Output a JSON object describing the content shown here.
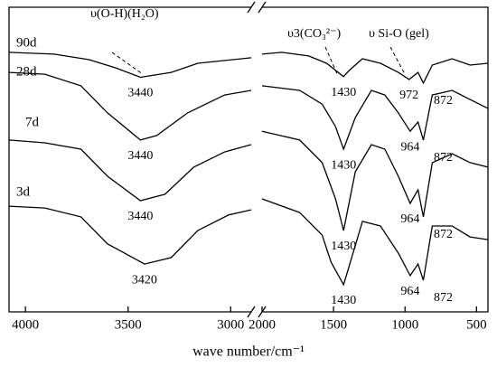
{
  "chart_data": {
    "type": "line",
    "x_label": "wave number/cm⁻¹",
    "xlim": [
      4080,
      2900
    ],
    "xticks": [
      4000,
      3500,
      3000
    ],
    "xlim2": [
      2000,
      420
    ],
    "x2ticks": [
      2000,
      1500,
      1000,
      500
    ],
    "ylim": [
      0,
      100
    ],
    "color": "#000000",
    "annotations": [
      "υ(O-H)(H₂O)",
      "υ3(CO₃²⁻)",
      "υ Si-O (gel)"
    ],
    "series": [
      {
        "name": "90d",
        "color": "#000000",
        "x": [
          4080,
          3860,
          3690,
          3560,
          3440,
          3290,
          3160,
          2900,
          2500,
          2000,
          1862,
          1674,
          1549,
          1430,
          1392,
          1298,
          1172,
          1047,
          972,
          909,
          872,
          809,
          671,
          545,
          420
        ],
        "values": [
          85.2,
          84.6,
          82.8,
          80.1,
          77.0,
          78.6,
          81.6,
          83.4,
          null,
          84.6,
          85.2,
          84.0,
          81.6,
          77.2,
          79.2,
          83.1,
          81.6,
          78.6,
          76.3,
          78.6,
          75.1,
          81.0,
          83.1,
          81.0,
          81.6
        ],
        "peak_labels": [
          3440,
          1430,
          972,
          872
        ]
      },
      {
        "name": "28d",
        "color": "#000000",
        "x": [
          4080,
          3905,
          3730,
          3600,
          3440,
          3360,
          3210,
          3030,
          2900,
          2500,
          2000,
          1737,
          1580,
          1486,
          1430,
          1348,
          1235,
          1141,
          1047,
          964,
          909,
          872,
          809,
          671,
          545,
          420
        ],
        "values": [
          78.6,
          78.0,
          74.2,
          65.3,
          56.4,
          57.9,
          65.3,
          71.2,
          72.7,
          null,
          74.2,
          72.7,
          68.2,
          60.8,
          53.4,
          63.8,
          72.7,
          71.2,
          65.3,
          59.3,
          62.3,
          56.4,
          71.2,
          72.7,
          69.7,
          66.8
        ],
        "peak_labels": [
          3440,
          1430,
          964,
          872
        ]
      },
      {
        "name": "7d",
        "color": "#000000",
        "x": [
          4080,
          3905,
          3730,
          3600,
          3440,
          3320,
          3180,
          3030,
          2900,
          2500,
          2000,
          1737,
          1580,
          1486,
          1430,
          1348,
          1235,
          1141,
          1047,
          964,
          909,
          872,
          809,
          671,
          545,
          420
        ],
        "values": [
          56.4,
          55.5,
          53.4,
          44.5,
          36.5,
          38.6,
          47.5,
          52.5,
          54.9,
          null,
          59.3,
          56.4,
          49.0,
          37.1,
          26.7,
          46.0,
          54.9,
          53.4,
          44.5,
          35.6,
          40.1,
          31.2,
          49.0,
          51.9,
          49.0,
          47.5
        ],
        "peak_labels": [
          3440,
          1430,
          964,
          872
        ]
      },
      {
        "name": "3d",
        "color": "#000000",
        "x": [
          4080,
          3905,
          3730,
          3600,
          3420,
          3290,
          3160,
          3010,
          2900,
          2500,
          2000,
          1737,
          1580,
          1517,
          1430,
          1392,
          1298,
          1172,
          1047,
          964,
          909,
          872,
          809,
          671,
          545,
          420
        ],
        "values": [
          34.7,
          34.1,
          31.2,
          22.3,
          15.7,
          17.8,
          26.7,
          31.8,
          33.5,
          null,
          37.1,
          32.6,
          25.2,
          16.3,
          8.9,
          14.8,
          29.7,
          28.2,
          19.3,
          11.9,
          15.7,
          10.4,
          28.2,
          28.2,
          24.6,
          23.7
        ],
        "peak_labels": [
          3420,
          1430,
          964,
          872
        ]
      }
    ]
  }
}
